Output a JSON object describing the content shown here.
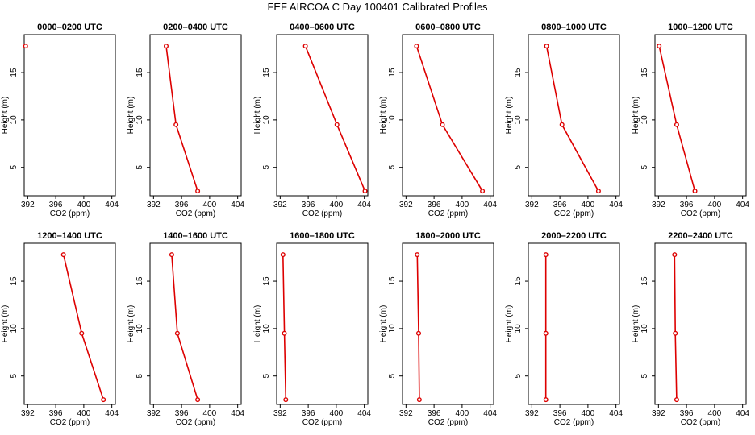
{
  "figure": {
    "title": "FEF AIRCOA C  Day 100401  Calibrated Profiles"
  },
  "colors": {
    "profile": "#dd0000",
    "axis": "#000000",
    "background": "#ffffff"
  },
  "chart_data": [
    {
      "type": "line",
      "title": "0000–0200 UTC",
      "xlabel": "CO2 (ppm)",
      "ylabel": "Height (m)",
      "xlim": [
        391.5,
        404.5
      ],
      "ylim": [
        2,
        19
      ],
      "xticks": [
        "392",
        "396",
        "400",
        "404"
      ],
      "yticks": [
        "5",
        "10",
        "15"
      ],
      "x": [
        391.7
      ],
      "y": [
        17.8
      ]
    },
    {
      "type": "line",
      "title": "0200–0400 UTC",
      "xlabel": "CO2 (ppm)",
      "ylabel": "Height (m)",
      "xlim": [
        391.5,
        404.5
      ],
      "ylim": [
        2,
        19
      ],
      "xticks": [
        "392",
        "396",
        "400",
        "404"
      ],
      "yticks": [
        "5",
        "10",
        "15"
      ],
      "x": [
        393.8,
        395.2,
        398.3
      ],
      "y": [
        17.8,
        9.5,
        2.5
      ]
    },
    {
      "type": "line",
      "title": "0400–0600 UTC",
      "xlabel": "CO2 (ppm)",
      "ylabel": "Height (m)",
      "xlim": [
        391.5,
        404.5
      ],
      "ylim": [
        2,
        19
      ],
      "xticks": [
        "392",
        "396",
        "400",
        "404"
      ],
      "yticks": [
        "5",
        "10",
        "15"
      ],
      "x": [
        395.6,
        400.1,
        404.1
      ],
      "y": [
        17.8,
        9.5,
        2.5
      ]
    },
    {
      "type": "line",
      "title": "0600–0800 UTC",
      "xlabel": "CO2 (ppm)",
      "ylabel": "Height (m)",
      "xlim": [
        391.5,
        404.5
      ],
      "ylim": [
        2,
        19
      ],
      "xticks": [
        "392",
        "396",
        "400",
        "404"
      ],
      "yticks": [
        "5",
        "10",
        "15"
      ],
      "x": [
        393.5,
        397.2,
        402.9
      ],
      "y": [
        17.8,
        9.5,
        2.5
      ]
    },
    {
      "type": "line",
      "title": "0800–1000 UTC",
      "xlabel": "CO2 (ppm)",
      "ylabel": "Height (m)",
      "xlim": [
        391.5,
        404.5
      ],
      "ylim": [
        2,
        19
      ],
      "xticks": [
        "392",
        "396",
        "400",
        "404"
      ],
      "yticks": [
        "5",
        "10",
        "15"
      ],
      "x": [
        394.1,
        396.3,
        401.5
      ],
      "y": [
        17.8,
        9.5,
        2.5
      ]
    },
    {
      "type": "line",
      "title": "1000–1200 UTC",
      "xlabel": "CO2 (ppm)",
      "ylabel": "Height (m)",
      "xlim": [
        391.5,
        404.5
      ],
      "ylim": [
        2,
        19
      ],
      "xticks": [
        "392",
        "396",
        "400",
        "404"
      ],
      "yticks": [
        "5",
        "10",
        "15"
      ],
      "x": [
        392.1,
        394.6,
        397.2
      ],
      "y": [
        17.8,
        9.5,
        2.5
      ]
    },
    {
      "type": "line",
      "title": "1200–1400 UTC",
      "xlabel": "CO2 (ppm)",
      "ylabel": "Height (m)",
      "xlim": [
        391.5,
        404.5
      ],
      "ylim": [
        2,
        19
      ],
      "xticks": [
        "392",
        "396",
        "400",
        "404"
      ],
      "yticks": [
        "5",
        "10",
        "15"
      ],
      "x": [
        397.1,
        399.7,
        402.8
      ],
      "y": [
        17.8,
        9.5,
        2.5
      ]
    },
    {
      "type": "line",
      "title": "1400–1600 UTC",
      "xlabel": "CO2 (ppm)",
      "ylabel": "Height (m)",
      "xlim": [
        391.5,
        404.5
      ],
      "ylim": [
        2,
        19
      ],
      "xticks": [
        "392",
        "396",
        "400",
        "404"
      ],
      "yticks": [
        "5",
        "10",
        "15"
      ],
      "x": [
        394.6,
        395.4,
        398.3
      ],
      "y": [
        17.8,
        9.5,
        2.5
      ]
    },
    {
      "type": "line",
      "title": "1600–1800 UTC",
      "xlabel": "CO2 (ppm)",
      "ylabel": "Height (m)",
      "xlim": [
        391.5,
        404.5
      ],
      "ylim": [
        2,
        19
      ],
      "xticks": [
        "392",
        "396",
        "400",
        "404"
      ],
      "yticks": [
        "5",
        "10",
        "15"
      ],
      "x": [
        392.4,
        392.6,
        392.8
      ],
      "y": [
        17.8,
        9.5,
        2.5
      ]
    },
    {
      "type": "line",
      "title": "1800–2000 UTC",
      "xlabel": "CO2 (ppm)",
      "ylabel": "Height (m)",
      "xlim": [
        391.5,
        404.5
      ],
      "ylim": [
        2,
        19
      ],
      "xticks": [
        "392",
        "396",
        "400",
        "404"
      ],
      "yticks": [
        "5",
        "10",
        "15"
      ],
      "x": [
        393.6,
        393.8,
        393.9
      ],
      "y": [
        17.8,
        9.5,
        2.5
      ]
    },
    {
      "type": "line",
      "title": "2000–2200 UTC",
      "xlabel": "CO2 (ppm)",
      "ylabel": "Height (m)",
      "xlim": [
        391.5,
        404.5
      ],
      "ylim": [
        2,
        19
      ],
      "xticks": [
        "392",
        "396",
        "400",
        "404"
      ],
      "yticks": [
        "5",
        "10",
        "15"
      ],
      "x": [
        394.0,
        394.0,
        394.0
      ],
      "y": [
        17.8,
        9.5,
        2.5
      ]
    },
    {
      "type": "line",
      "title": "2200–2400 UTC",
      "xlabel": "CO2 (ppm)",
      "ylabel": "Height (m)",
      "xlim": [
        391.5,
        404.5
      ],
      "ylim": [
        2,
        19
      ],
      "xticks": [
        "392",
        "396",
        "400",
        "404"
      ],
      "yticks": [
        "5",
        "10",
        "15"
      ],
      "x": [
        394.3,
        394.4,
        394.6
      ],
      "y": [
        17.8,
        9.5,
        2.5
      ]
    }
  ]
}
